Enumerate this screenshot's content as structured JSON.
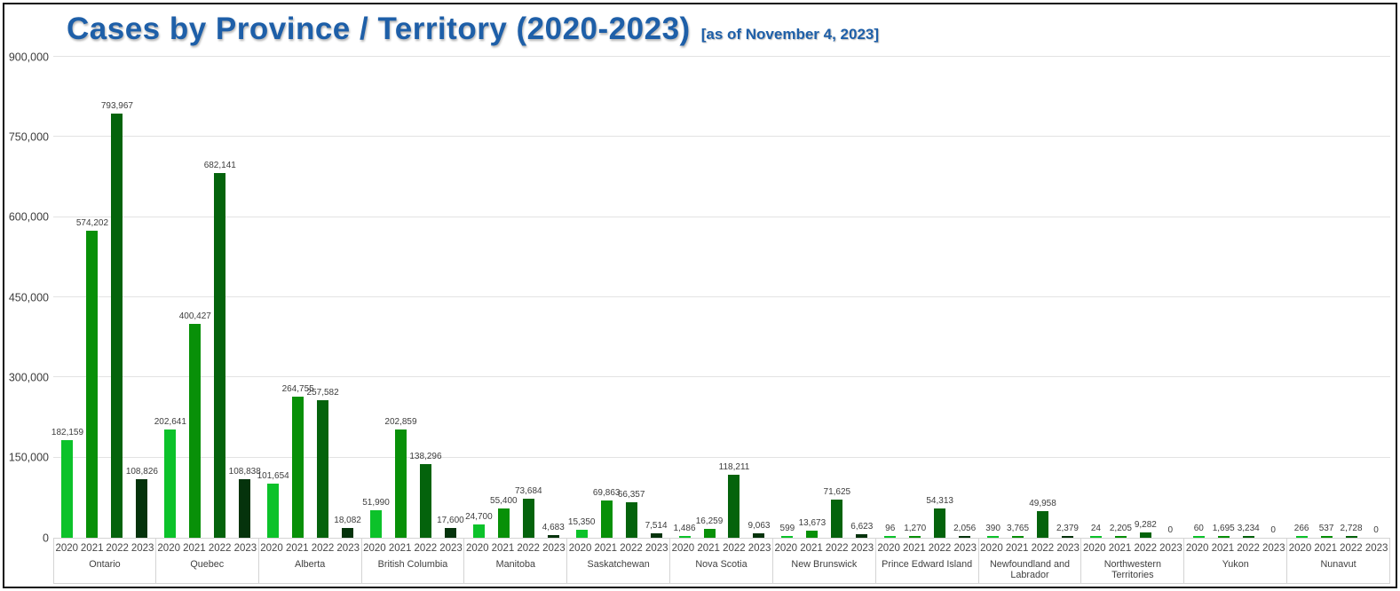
{
  "header": {
    "title": "Cases by Province / Territory (2020-2023)",
    "subtitle": "[as of November 4, 2023]"
  },
  "chart_data": {
    "type": "bar",
    "title": "Cases by Province / Territory (2020-2023)",
    "subtitle_note": "[as of November 4, 2023]",
    "grid": true,
    "legend_position": "none",
    "value_labels": "above each bar, comma-formatted",
    "ylim": [
      0,
      900000
    ],
    "y_tick_step": 150000,
    "y_tick_labels": [
      "0",
      "150,000",
      "300,000",
      "450,000",
      "600,000",
      "750,000",
      "900,000"
    ],
    "series_years": [
      "2020",
      "2021",
      "2022",
      "2023"
    ],
    "year_colors": {
      "2020": "#0cc22a",
      "2021": "#089008",
      "2022": "#04630c",
      "2023": "#05330c"
    },
    "groups": [
      {
        "province": "Ontario",
        "values": [
          182159,
          574202,
          793967,
          108826
        ]
      },
      {
        "province": "Quebec",
        "values": [
          202641,
          400427,
          682141,
          108838
        ]
      },
      {
        "province": "Alberta",
        "values": [
          101654,
          264755,
          257582,
          18082
        ]
      },
      {
        "province": "British Columbia",
        "values": [
          51990,
          202859,
          138296,
          17600
        ]
      },
      {
        "province": "Manitoba",
        "values": [
          24700,
          55400,
          73684,
          4683
        ]
      },
      {
        "province": "Saskatchewan",
        "values": [
          15350,
          69863,
          66357,
          7514
        ]
      },
      {
        "province": "Nova Scotia",
        "values": [
          1486,
          16259,
          118211,
          9063
        ]
      },
      {
        "province": "New Brunswick",
        "values": [
          599,
          13673,
          71625,
          6623
        ]
      },
      {
        "province": "Prince Edward Island",
        "values": [
          96,
          1270,
          54313,
          2056
        ]
      },
      {
        "province": "Newfoundland and Labrador",
        "values": [
          390,
          3765,
          49958,
          2379
        ]
      },
      {
        "province": "Northwestern Territories",
        "values": [
          24,
          2205,
          9282,
          0
        ]
      },
      {
        "province": "Yukon",
        "values": [
          60,
          1695,
          3234,
          0
        ]
      },
      {
        "province": "Nunavut",
        "values": [
          266,
          537,
          2728,
          0
        ]
      }
    ]
  },
  "colors": {
    "title_blue": "#1e5fa8",
    "gridline": "#e3e3e3",
    "axis_box_border": "#d4d4d4",
    "text_dark": "#3d3d3d",
    "frame_border": "#0d0d0d"
  }
}
